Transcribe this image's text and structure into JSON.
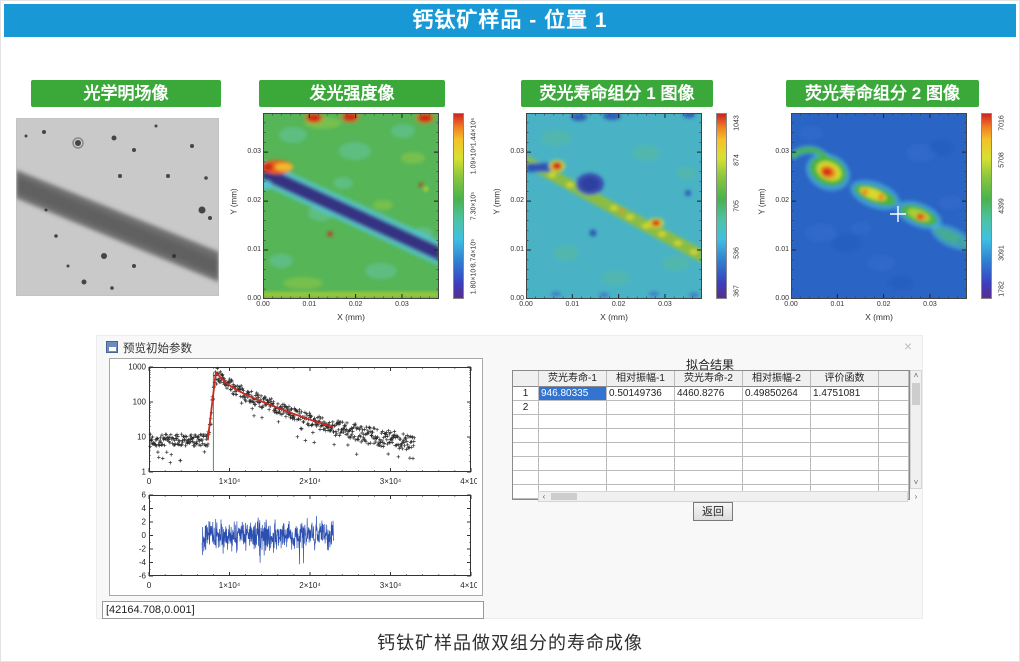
{
  "colors": {
    "header_bg": "#1899d6",
    "label_bg": "#3aa93a",
    "selection": "#3274cf"
  },
  "header": {
    "title": "钙钛矿样品 - 位置 1"
  },
  "panels": [
    {
      "label": "光学明场像",
      "kind": "gray"
    },
    {
      "label": "发光强度像",
      "kind": "intensity",
      "xlabel": "X (mm)",
      "ylabel": "Y (mm)",
      "x_ticks": [
        "0.00",
        "0.01",
        "0.02",
        "0.03"
      ],
      "y_ticks": [
        "0.00",
        "0.01",
        "0.02",
        "0.03"
      ],
      "colorbar_ticks": [
        "1.80×10⁴",
        "3.74×10⁵",
        "7.30×10⁵",
        "1.09×10⁶",
        "1.44×10⁶"
      ]
    },
    {
      "label": "荧光寿命组分 1 图像",
      "kind": "comp1",
      "xlabel": "X (mm)",
      "ylabel": "Y (mm)",
      "x_ticks": [
        "0.00",
        "0.01",
        "0.02",
        "0.03"
      ],
      "y_ticks": [
        "0.00",
        "0.01",
        "0.02",
        "0.03"
      ],
      "colorbar_ticks": [
        "367",
        "536",
        "705",
        "874",
        "1043"
      ]
    },
    {
      "label": "荧光寿命组分 2 图像",
      "kind": "comp2",
      "xlabel": "X (mm)",
      "ylabel": "Y (mm)",
      "x_ticks": [
        "0.00",
        "0.01",
        "0.02",
        "0.03"
      ],
      "y_ticks": [
        "0.00",
        "0.01",
        "0.02",
        "0.03"
      ],
      "colorbar_ticks": [
        "1782",
        "3091",
        "4399",
        "5708",
        "7016"
      ]
    }
  ],
  "dialog": {
    "title": "预览初始参数",
    "close_glyph": "×",
    "status_value": "[42164.708,0.001]",
    "return_label": "返回",
    "table": {
      "title": "拟合结果",
      "columns": [
        "荧光寿命-1",
        "相对振幅-1",
        "荧光寿命-2",
        "相对振幅-2",
        "评价函数"
      ],
      "rows": [
        [
          "946.80335",
          "0.50149736",
          "4460.8276",
          "0.49850264",
          "1.4751081"
        ]
      ],
      "row_indices": [
        "1",
        "2"
      ],
      "total_rows": 8,
      "scroll": {
        "up": "˄",
        "down": "˅",
        "left": "‹",
        "right": "›"
      }
    }
  },
  "caption": "钙钛矿样品做双组分的寿命成像",
  "chart_data": [
    {
      "id": "decay",
      "type": "scatter",
      "x_ticks": [
        "0",
        "1×10⁴",
        "2×10⁴",
        "3×10⁴",
        "4×10⁴"
      ],
      "y_ticks": [
        "1",
        "10",
        "100",
        "1000"
      ],
      "xlim": [
        0,
        40000
      ],
      "ylog_lim": [
        1,
        1000
      ],
      "baseline": 8,
      "rise_start": 7300,
      "peak_x": 8300,
      "peak_y": 700,
      "data_end": 33000,
      "fit_end": 23000,
      "cursor_x": 8000,
      "fit": {
        "tau1": 946.80335,
        "amp1": 0.50149736,
        "tau2": 4460.8276,
        "amp2": 0.49850264
      },
      "marker_color": "#151515",
      "fit_color": "#c92a22",
      "cursor_color": "#3d9e4c"
    },
    {
      "id": "residuals",
      "type": "line",
      "x_ticks": [
        "0",
        "1×10⁴",
        "2×10⁴",
        "3×10⁴",
        "4×10⁴"
      ],
      "y_ticks": [
        "6",
        "4",
        "2",
        "0",
        "-2",
        "-4",
        "-6"
      ],
      "xlim": [
        0,
        40000
      ],
      "ylim": [
        -6,
        6
      ],
      "x_start": 6600,
      "x_end": 23000,
      "sigma": 1.25,
      "color": "#2b4fb0"
    },
    {
      "id": "heatmap-intensity",
      "type": "heatmap",
      "xlabel": "X (mm)",
      "ylabel": "Y (mm)",
      "xlim": [
        0,
        0.038
      ],
      "ylim": [
        0,
        0.038
      ],
      "colorbar_range": [
        18000,
        1440000
      ]
    },
    {
      "id": "heatmap-comp1",
      "type": "heatmap",
      "xlabel": "X (mm)",
      "ylabel": "Y (mm)",
      "xlim": [
        0,
        0.038
      ],
      "ylim": [
        0,
        0.038
      ],
      "colorbar_range": [
        367,
        1043
      ]
    },
    {
      "id": "heatmap-comp2",
      "type": "heatmap",
      "xlabel": "X (mm)",
      "ylabel": "Y (mm)",
      "xlim": [
        0,
        0.038
      ],
      "ylim": [
        0,
        0.038
      ],
      "colorbar_range": [
        1782,
        7016
      ],
      "cursor": [
        0.022,
        0.0175
      ]
    }
  ]
}
